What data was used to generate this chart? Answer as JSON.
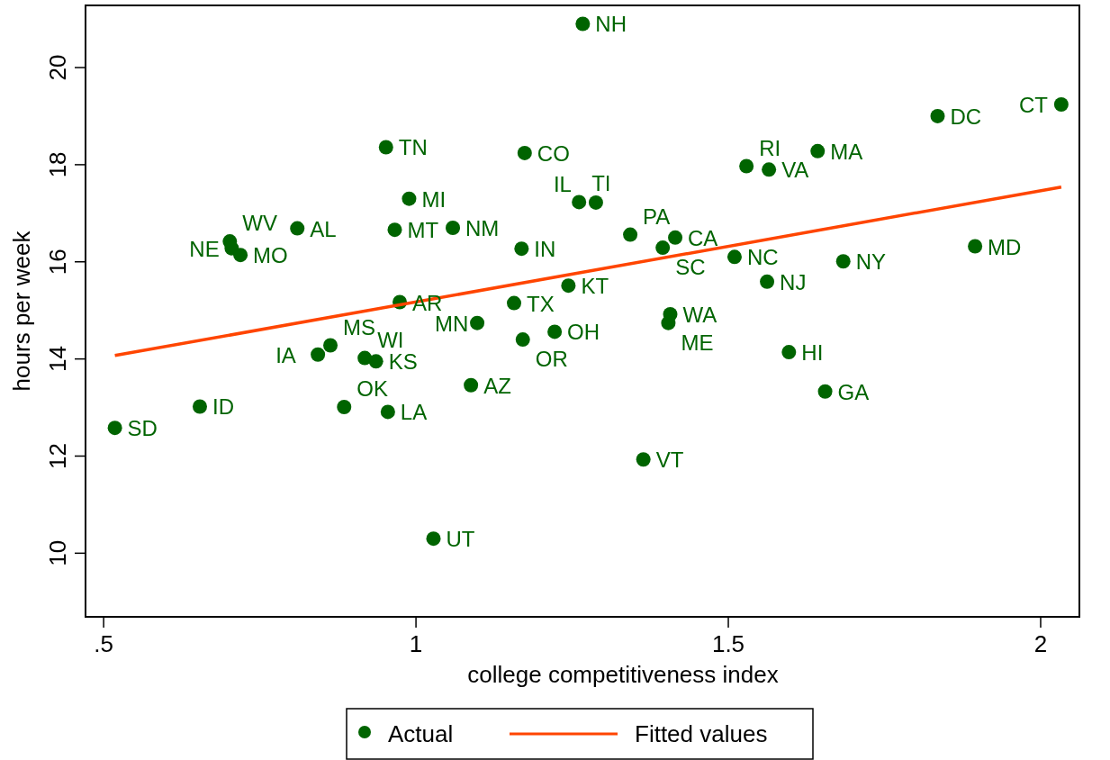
{
  "chart_data": {
    "type": "scatter",
    "xlabel": "college competitiveness index",
    "ylabel": "hours per week",
    "xlim": [
      0.471,
      2.062
    ],
    "ylim": [
      8.69,
      21.28
    ],
    "xticks": [
      {
        "value": 0.5,
        "label": ".5"
      },
      1,
      1.5,
      2
    ],
    "yticks": [
      10,
      12,
      14,
      16,
      18,
      20
    ],
    "grid": false,
    "legend": "bottom",
    "marker": "circle",
    "series": [
      {
        "name": "Actual",
        "color": "#006400",
        "x": [
          0.952,
          1.174,
          0.989,
          0.81,
          0.966,
          1.059,
          1.169,
          0.702,
          0.705,
          0.719,
          0.974,
          1.157,
          1.244,
          1.267,
          1.835,
          2.033,
          1.643,
          1.529,
          1.565,
          1.261,
          1.288,
          1.343,
          1.395,
          1.415,
          1.51,
          1.684,
          1.562,
          1.895,
          0.518,
          0.654,
          0.843,
          0.863,
          0.918,
          0.936,
          0.885,
          0.955,
          1.088,
          1.028,
          1.098,
          1.171,
          1.222,
          1.407,
          1.404,
          1.597,
          1.655,
          1.364
        ],
        "values": [
          18.36,
          18.24,
          17.3,
          16.69,
          16.66,
          16.7,
          16.27,
          16.42,
          16.28,
          16.14,
          15.17,
          15.15,
          15.51,
          20.9,
          19.0,
          19.24,
          18.28,
          17.97,
          17.9,
          17.23,
          17.22,
          16.56,
          16.29,
          16.5,
          16.1,
          16.01,
          15.59,
          16.32,
          12.58,
          13.02,
          14.09,
          14.28,
          14.02,
          13.95,
          13.01,
          12.91,
          13.46,
          10.3,
          14.74,
          14.4,
          14.56,
          14.92,
          14.74,
          14.14,
          13.33,
          11.93
        ]
      },
      {
        "name": "Fitted values",
        "type": "line",
        "color": "#ff4500",
        "marker": "none",
        "line_style": "solid",
        "x": [
          0.518,
          2.033
        ],
        "values": [
          14.07,
          17.54
        ]
      }
    ],
    "annotations": [
      {
        "text": "TN",
        "x": 0.952,
        "y": 18.36
      },
      {
        "text": "CO",
        "x": 1.174,
        "y": 18.24
      },
      {
        "text": "MI",
        "x": 0.989,
        "y": 17.3
      },
      {
        "text": "AL",
        "x": 0.81,
        "y": 16.69
      },
      {
        "text": "MT",
        "x": 0.966,
        "y": 16.66
      },
      {
        "text": "NM",
        "x": 1.059,
        "y": 16.7
      },
      {
        "text": "IN",
        "x": 1.169,
        "y": 16.27
      },
      {
        "text": "WV",
        "x": 0.702,
        "y": 16.42
      },
      {
        "text": "NE",
        "x": 0.705,
        "y": 16.28
      },
      {
        "text": "MO",
        "x": 0.719,
        "y": 16.14
      },
      {
        "text": "AR",
        "x": 0.974,
        "y": 15.17
      },
      {
        "text": "TX",
        "x": 1.157,
        "y": 15.15
      },
      {
        "text": "KT",
        "x": 1.244,
        "y": 15.51
      },
      {
        "text": "NH",
        "x": 1.267,
        "y": 20.9
      },
      {
        "text": "DC",
        "x": 1.835,
        "y": 19.0
      },
      {
        "text": "CT",
        "x": 2.033,
        "y": 19.24
      },
      {
        "text": "MA",
        "x": 1.643,
        "y": 18.28
      },
      {
        "text": "RI",
        "x": 1.529,
        "y": 17.97
      },
      {
        "text": "VA",
        "x": 1.565,
        "y": 17.9
      },
      {
        "text": "TI",
        "x": 1.261,
        "y": 17.23
      },
      {
        "text": "IL",
        "x": 1.288,
        "y": 17.22
      },
      {
        "text": "PA",
        "x": 1.343,
        "y": 16.56
      },
      {
        "text": "SC",
        "x": 1.395,
        "y": 16.29
      },
      {
        "text": "CA",
        "x": 1.415,
        "y": 16.5
      },
      {
        "text": "NC",
        "x": 1.51,
        "y": 16.1
      },
      {
        "text": "NY",
        "x": 1.684,
        "y": 16.01
      },
      {
        "text": "NJ",
        "x": 1.562,
        "y": 15.59
      },
      {
        "text": "MD",
        "x": 1.895,
        "y": 16.32
      },
      {
        "text": "SD",
        "x": 0.518,
        "y": 12.58
      },
      {
        "text": "ID",
        "x": 0.654,
        "y": 13.02
      },
      {
        "text": "IA",
        "x": 0.843,
        "y": 14.09
      },
      {
        "text": "MS",
        "x": 0.863,
        "y": 14.28
      },
      {
        "text": "WI",
        "x": 0.918,
        "y": 14.02
      },
      {
        "text": "KS",
        "x": 0.936,
        "y": 13.95
      },
      {
        "text": "OK",
        "x": 0.885,
        "y": 13.01
      },
      {
        "text": "LA",
        "x": 0.955,
        "y": 12.91
      },
      {
        "text": "AZ",
        "x": 1.088,
        "y": 13.46
      },
      {
        "text": "UT",
        "x": 1.028,
        "y": 10.3
      },
      {
        "text": "MN",
        "x": 1.098,
        "y": 14.74
      },
      {
        "text": "OR",
        "x": 1.171,
        "y": 14.4
      },
      {
        "text": "OH",
        "x": 1.222,
        "y": 14.56
      },
      {
        "text": "WA",
        "x": 1.407,
        "y": 14.92
      },
      {
        "text": "ME",
        "x": 1.404,
        "y": 14.74
      },
      {
        "text": "HI",
        "x": 1.597,
        "y": 14.14
      },
      {
        "text": "GA",
        "x": 1.655,
        "y": 13.33
      },
      {
        "text": "VT",
        "x": 1.364,
        "y": 11.93
      }
    ]
  }
}
